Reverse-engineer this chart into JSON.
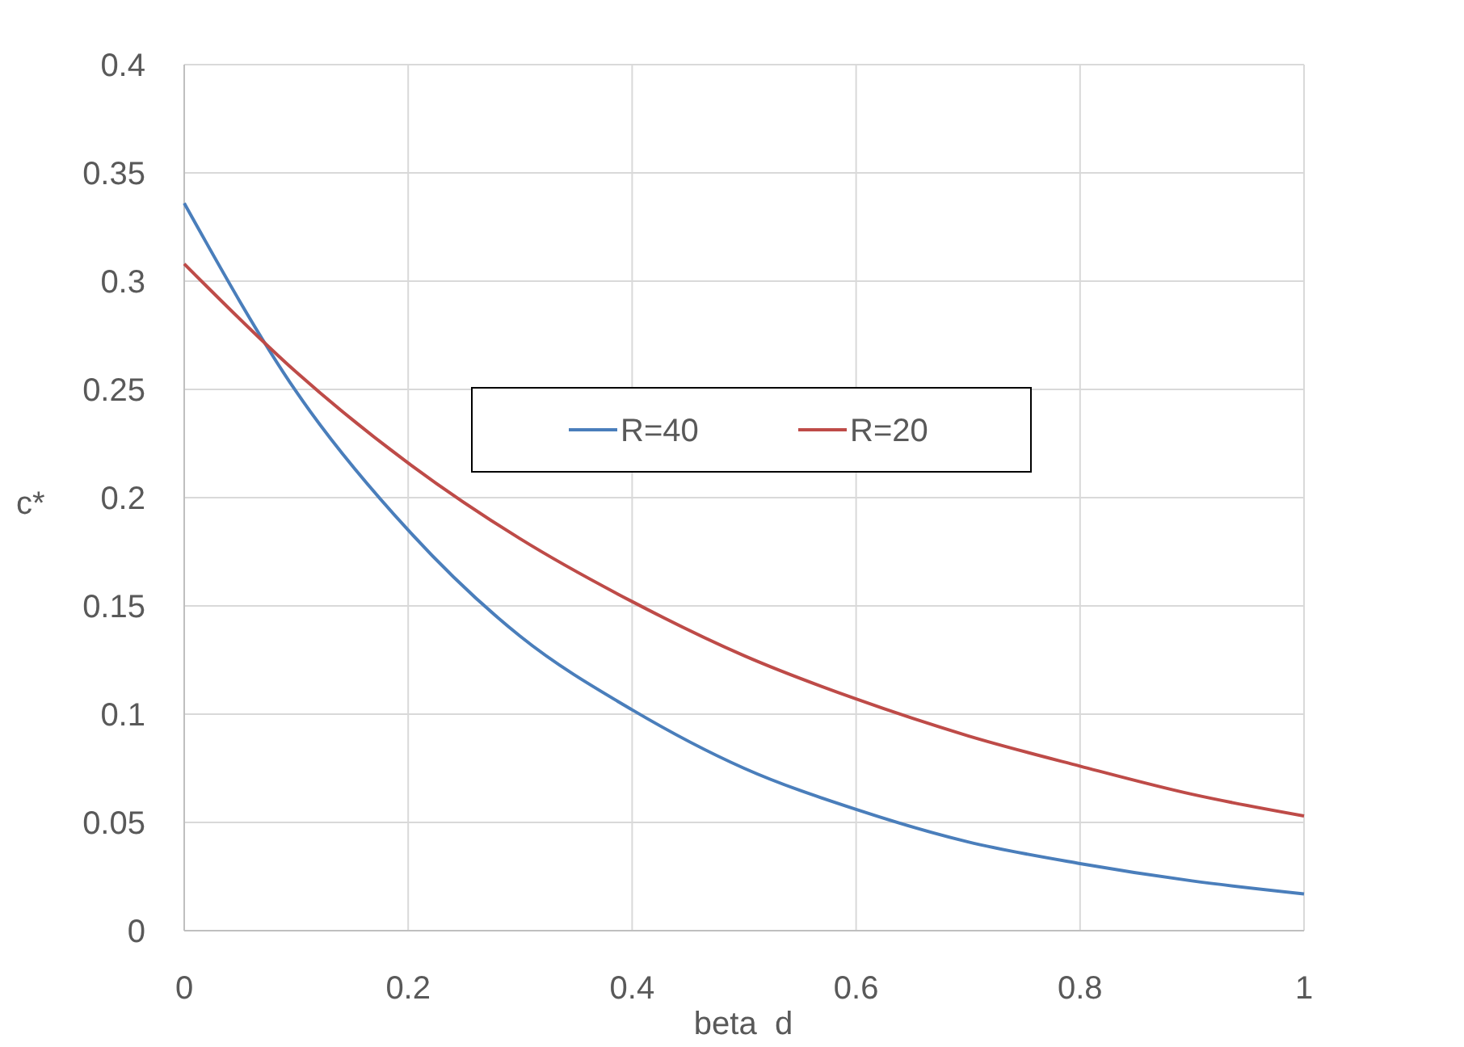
{
  "chart_data": {
    "type": "line",
    "xlabel": "beta  d",
    "ylabel": "c*",
    "x": [
      0,
      0.1,
      0.2,
      0.3,
      0.4,
      0.5,
      0.6,
      0.7,
      0.8,
      0.9,
      1
    ],
    "series": [
      {
        "name": "R=40",
        "color": "#4a7ebb",
        "values": [
          0.336,
          0.249,
          0.185,
          0.136,
          0.102,
          0.075,
          0.056,
          0.041,
          0.031,
          0.023,
          0.017
        ]
      },
      {
        "name": "R=20",
        "color": "#be4b48",
        "values": [
          0.308,
          0.258,
          0.216,
          0.181,
          0.152,
          0.127,
          0.107,
          0.09,
          0.076,
          0.063,
          0.053
        ]
      }
    ],
    "xlim": [
      0,
      1
    ],
    "xticks": [
      0,
      0.2,
      0.4,
      0.6,
      0.8,
      1
    ],
    "ylim": [
      0,
      0.4
    ],
    "yticks": [
      0,
      0.05,
      0.1,
      0.15,
      0.2,
      0.25,
      0.3,
      0.35,
      0.4
    ],
    "grid": true,
    "legend": "top",
    "marker": "none",
    "line_style": "solid"
  }
}
